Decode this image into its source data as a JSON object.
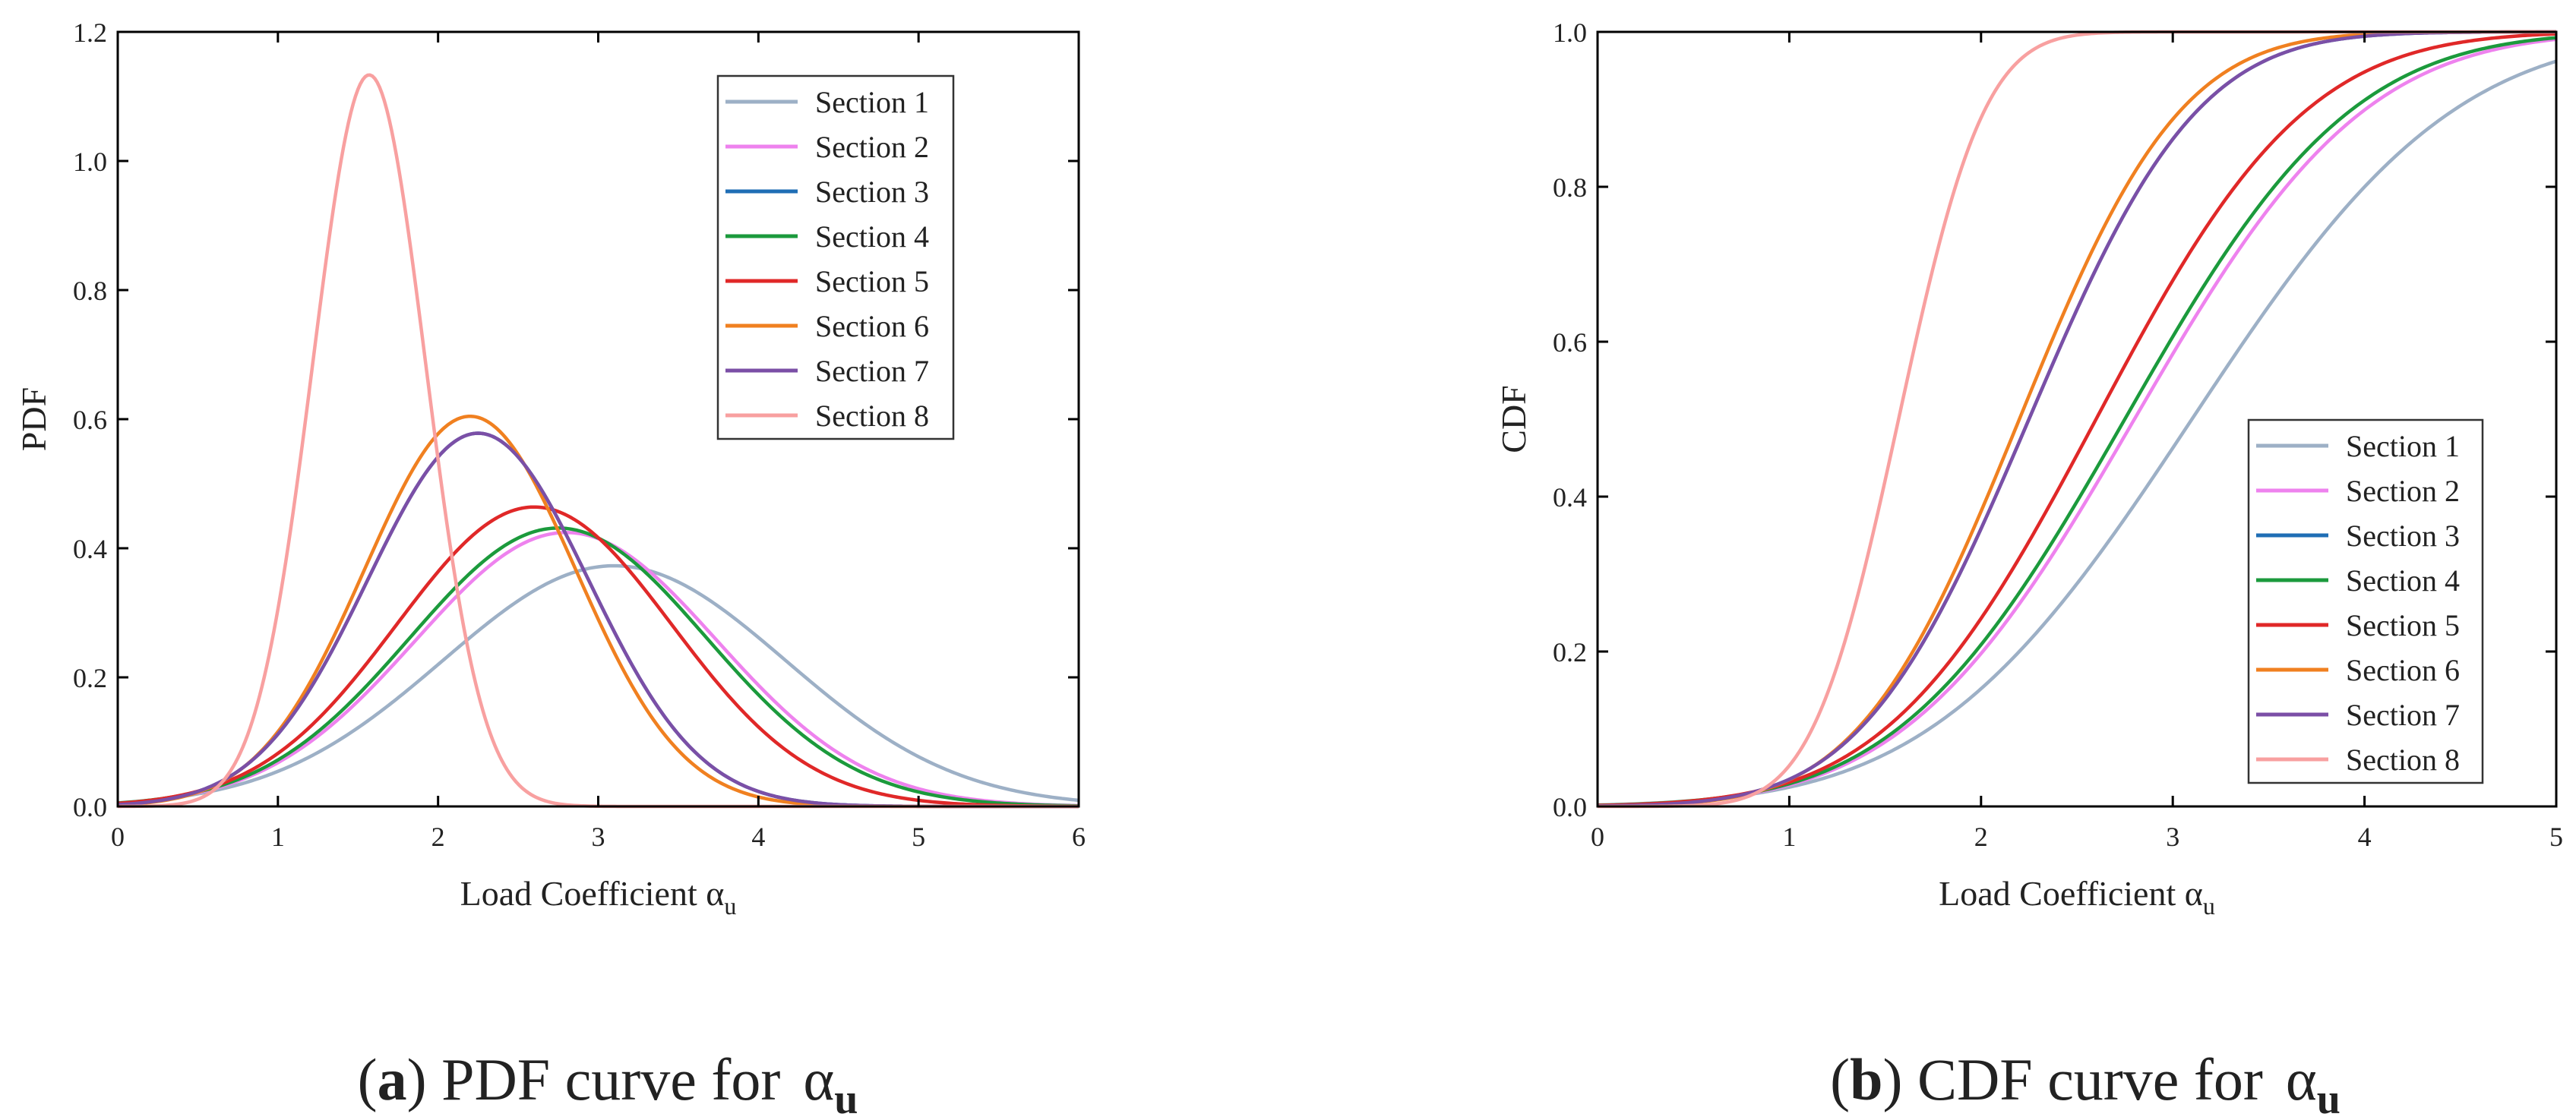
{
  "chart_data": [
    {
      "id": "pdf",
      "type": "line",
      "title": "",
      "caption": {
        "letter": "a",
        "text": "PDF curve for",
        "symbol": "α",
        "subscript": "u"
      },
      "xlabel": {
        "text": "Load Coefficient α",
        "subscript": "u"
      },
      "ylabel": "PDF",
      "xlim": [
        0,
        6
      ],
      "ylim": [
        0,
        1.2
      ],
      "xticks": [
        "0",
        "1",
        "2",
        "3",
        "4",
        "5",
        "6"
      ],
      "yticks": [
        "0.0",
        "0.2",
        "0.4",
        "0.6",
        "0.8",
        "1.0",
        "1.2"
      ],
      "legend_position": "top-right",
      "grid": false,
      "series": [
        {
          "name": "Section 1",
          "color": "#9db0c6",
          "mean": 3.1,
          "sd": 1.07
        },
        {
          "name": "Section 2",
          "color": "#ee82ee",
          "mean": 2.8,
          "sd": 0.94
        },
        {
          "name": "Section 3",
          "color": "#1f6eb5",
          "mean": 2.25,
          "sd": 0.69
        },
        {
          "name": "Section 4",
          "color": "#1b9a3c",
          "mean": 2.75,
          "sd": 0.925
        },
        {
          "name": "Section 5",
          "color": "#e02828",
          "mean": 2.6,
          "sd": 0.86
        },
        {
          "name": "Section 6",
          "color": "#f08020",
          "mean": 2.2,
          "sd": 0.66
        },
        {
          "name": "Section 7",
          "color": "#7b4fa6",
          "mean": 2.25,
          "sd": 0.69
        },
        {
          "name": "Section 8",
          "color": "#f8a0a0",
          "mean": 1.57,
          "sd": 0.352
        }
      ]
    },
    {
      "id": "cdf",
      "type": "line",
      "title": "",
      "caption": {
        "letter": "b",
        "text": "CDF curve for",
        "symbol": "α",
        "subscript": "u"
      },
      "xlabel": {
        "text": "Load Coefficient α",
        "subscript": "u"
      },
      "ylabel": "CDF",
      "xlim": [
        0,
        5
      ],
      "ylim": [
        0,
        1.0
      ],
      "xticks": [
        "0",
        "1",
        "2",
        "3",
        "4",
        "5"
      ],
      "yticks": [
        "0.0",
        "0.2",
        "0.4",
        "0.6",
        "0.8",
        "1.0"
      ],
      "legend_position": "bottom-right",
      "grid": false,
      "series": [
        {
          "name": "Section 1",
          "color": "#9db0c6",
          "mean": 3.1,
          "sd": 1.07
        },
        {
          "name": "Section 2",
          "color": "#ee82ee",
          "mean": 2.8,
          "sd": 0.94
        },
        {
          "name": "Section 3",
          "color": "#1f6eb5",
          "mean": 2.25,
          "sd": 0.69
        },
        {
          "name": "Section 4",
          "color": "#1b9a3c",
          "mean": 2.75,
          "sd": 0.925
        },
        {
          "name": "Section 5",
          "color": "#e02828",
          "mean": 2.6,
          "sd": 0.86
        },
        {
          "name": "Section 6",
          "color": "#f08020",
          "mean": 2.2,
          "sd": 0.66
        },
        {
          "name": "Section 7",
          "color": "#7b4fa6",
          "mean": 2.25,
          "sd": 0.69
        },
        {
          "name": "Section 8",
          "color": "#f8a0a0",
          "mean": 1.57,
          "sd": 0.352
        }
      ]
    }
  ]
}
